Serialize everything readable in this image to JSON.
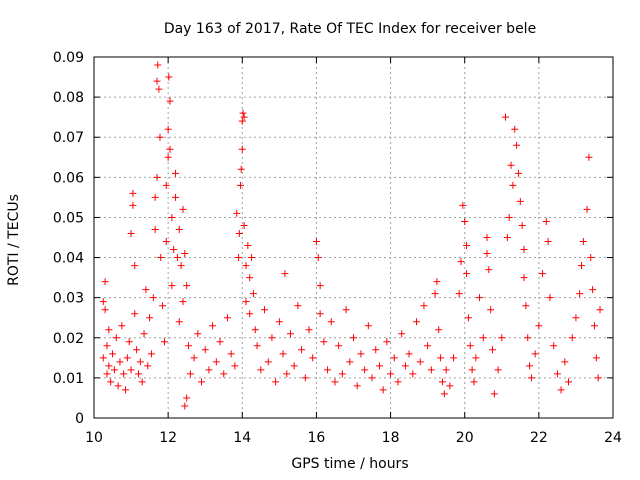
{
  "chart_data": {
    "type": "scatter",
    "title": "Day 163 of 2017, Rate Of TEC Index for receiver bele",
    "xlabel": "GPS time / hours",
    "ylabel": "ROTI / TECUs",
    "xlim": [
      10,
      24
    ],
    "ylim": [
      0,
      0.09
    ],
    "xticks": [
      10,
      12,
      14,
      16,
      18,
      20,
      22,
      24
    ],
    "xtick_labels": [
      "10",
      "12",
      "14",
      "16",
      "18",
      "20",
      "22",
      "24"
    ],
    "yticks": [
      0,
      0.01,
      0.02,
      0.03,
      0.04,
      0.05,
      0.06,
      0.07,
      0.08,
      0.09
    ],
    "ytick_labels": [
      "0",
      "0.01",
      "0.02",
      "0.03",
      "0.04",
      "0.05",
      "0.06",
      "0.07",
      "0.08",
      "0.09"
    ],
    "grid": true,
    "marker": "+",
    "series_color": "#ff0000",
    "points": [
      [
        10.25,
        0.015
      ],
      [
        10.25,
        0.029
      ],
      [
        10.3,
        0.034
      ],
      [
        10.3,
        0.027
      ],
      [
        10.35,
        0.018
      ],
      [
        10.35,
        0.011
      ],
      [
        10.4,
        0.013
      ],
      [
        10.4,
        0.022
      ],
      [
        10.45,
        0.009
      ],
      [
        10.5,
        0.016
      ],
      [
        10.55,
        0.012
      ],
      [
        10.6,
        0.02
      ],
      [
        10.65,
        0.008
      ],
      [
        10.7,
        0.014
      ],
      [
        10.75,
        0.023
      ],
      [
        10.8,
        0.011
      ],
      [
        10.85,
        0.007
      ],
      [
        10.9,
        0.015
      ],
      [
        10.95,
        0.019
      ],
      [
        11.0,
        0.012
      ],
      [
        11.0,
        0.046
      ],
      [
        11.05,
        0.053
      ],
      [
        11.05,
        0.056
      ],
      [
        11.1,
        0.038
      ],
      [
        11.1,
        0.026
      ],
      [
        11.15,
        0.017
      ],
      [
        11.2,
        0.011
      ],
      [
        11.25,
        0.014
      ],
      [
        11.3,
        0.009
      ],
      [
        11.35,
        0.021
      ],
      [
        11.4,
        0.032
      ],
      [
        11.45,
        0.013
      ],
      [
        11.5,
        0.025
      ],
      [
        11.55,
        0.016
      ],
      [
        11.6,
        0.03
      ],
      [
        11.65,
        0.047
      ],
      [
        11.65,
        0.055
      ],
      [
        11.7,
        0.06
      ],
      [
        11.7,
        0.084
      ],
      [
        11.72,
        0.088
      ],
      [
        11.75,
        0.082
      ],
      [
        11.78,
        0.07
      ],
      [
        11.8,
        0.04
      ],
      [
        11.85,
        0.028
      ],
      [
        11.9,
        0.019
      ],
      [
        11.95,
        0.044
      ],
      [
        11.95,
        0.058
      ],
      [
        12.0,
        0.065
      ],
      [
        12.0,
        0.072
      ],
      [
        12.02,
        0.085
      ],
      [
        12.05,
        0.079
      ],
      [
        12.05,
        0.067
      ],
      [
        12.1,
        0.05
      ],
      [
        12.1,
        0.033
      ],
      [
        12.15,
        0.042
      ],
      [
        12.2,
        0.055
      ],
      [
        12.2,
        0.061
      ],
      [
        12.25,
        0.04
      ],
      [
        12.3,
        0.047
      ],
      [
        12.3,
        0.024
      ],
      [
        12.35,
        0.038
      ],
      [
        12.4,
        0.029
      ],
      [
        12.4,
        0.052
      ],
      [
        12.45,
        0.041
      ],
      [
        12.5,
        0.033
      ],
      [
        12.5,
        0.005
      ],
      [
        12.45,
        0.003
      ],
      [
        12.55,
        0.018
      ],
      [
        12.6,
        0.011
      ],
      [
        12.7,
        0.015
      ],
      [
        12.8,
        0.021
      ],
      [
        12.9,
        0.009
      ],
      [
        13.0,
        0.017
      ],
      [
        13.1,
        0.012
      ],
      [
        13.2,
        0.023
      ],
      [
        13.3,
        0.014
      ],
      [
        13.4,
        0.019
      ],
      [
        13.5,
        0.011
      ],
      [
        13.6,
        0.025
      ],
      [
        13.7,
        0.016
      ],
      [
        13.8,
        0.013
      ],
      [
        13.85,
        0.051
      ],
      [
        13.9,
        0.04
      ],
      [
        13.92,
        0.046
      ],
      [
        13.95,
        0.058
      ],
      [
        13.97,
        0.062
      ],
      [
        14.0,
        0.067
      ],
      [
        14.0,
        0.074
      ],
      [
        14.02,
        0.076
      ],
      [
        14.05,
        0.075
      ],
      [
        14.05,
        0.048
      ],
      [
        14.1,
        0.038
      ],
      [
        14.1,
        0.029
      ],
      [
        14.15,
        0.043
      ],
      [
        14.2,
        0.035
      ],
      [
        14.2,
        0.026
      ],
      [
        14.25,
        0.04
      ],
      [
        14.3,
        0.031
      ],
      [
        14.35,
        0.022
      ],
      [
        14.4,
        0.018
      ],
      [
        14.5,
        0.012
      ],
      [
        14.6,
        0.027
      ],
      [
        14.7,
        0.014
      ],
      [
        14.8,
        0.02
      ],
      [
        14.9,
        0.009
      ],
      [
        15.0,
        0.024
      ],
      [
        15.1,
        0.016
      ],
      [
        15.15,
        0.036
      ],
      [
        15.2,
        0.011
      ],
      [
        15.3,
        0.021
      ],
      [
        15.4,
        0.013
      ],
      [
        15.5,
        0.028
      ],
      [
        15.6,
        0.017
      ],
      [
        15.7,
        0.01
      ],
      [
        15.8,
        0.022
      ],
      [
        15.9,
        0.015
      ],
      [
        16.0,
        0.044
      ],
      [
        16.05,
        0.04
      ],
      [
        16.1,
        0.033
      ],
      [
        16.1,
        0.026
      ],
      [
        16.2,
        0.019
      ],
      [
        16.3,
        0.012
      ],
      [
        16.4,
        0.024
      ],
      [
        16.5,
        0.009
      ],
      [
        16.6,
        0.018
      ],
      [
        16.7,
        0.011
      ],
      [
        16.8,
        0.027
      ],
      [
        16.9,
        0.014
      ],
      [
        17.0,
        0.02
      ],
      [
        17.1,
        0.008
      ],
      [
        17.2,
        0.016
      ],
      [
        17.3,
        0.012
      ],
      [
        17.4,
        0.023
      ],
      [
        17.5,
        0.01
      ],
      [
        17.6,
        0.017
      ],
      [
        17.7,
        0.013
      ],
      [
        17.8,
        0.007
      ],
      [
        17.9,
        0.019
      ],
      [
        18.0,
        0.011
      ],
      [
        18.1,
        0.015
      ],
      [
        18.2,
        0.009
      ],
      [
        18.3,
        0.021
      ],
      [
        18.4,
        0.013
      ],
      [
        18.5,
        0.016
      ],
      [
        18.6,
        0.011
      ],
      [
        18.7,
        0.024
      ],
      [
        18.8,
        0.014
      ],
      [
        18.9,
        0.028
      ],
      [
        19.0,
        0.018
      ],
      [
        19.1,
        0.012
      ],
      [
        19.2,
        0.031
      ],
      [
        19.25,
        0.034
      ],
      [
        19.3,
        0.022
      ],
      [
        19.35,
        0.015
      ],
      [
        19.4,
        0.009
      ],
      [
        19.45,
        0.006
      ],
      [
        19.5,
        0.012
      ],
      [
        19.6,
        0.008
      ],
      [
        19.7,
        0.015
      ],
      [
        19.85,
        0.031
      ],
      [
        19.9,
        0.039
      ],
      [
        19.95,
        0.053
      ],
      [
        20.0,
        0.049
      ],
      [
        20.05,
        0.043
      ],
      [
        20.05,
        0.036
      ],
      [
        20.1,
        0.025
      ],
      [
        20.15,
        0.018
      ],
      [
        20.2,
        0.012
      ],
      [
        20.25,
        0.009
      ],
      [
        20.3,
        0.015
      ],
      [
        20.4,
        0.03
      ],
      [
        20.5,
        0.02
      ],
      [
        20.6,
        0.045
      ],
      [
        20.6,
        0.041
      ],
      [
        20.65,
        0.037
      ],
      [
        20.7,
        0.027
      ],
      [
        20.75,
        0.017
      ],
      [
        20.8,
        0.006
      ],
      [
        20.9,
        0.012
      ],
      [
        21.0,
        0.02
      ],
      [
        21.1,
        0.075
      ],
      [
        21.15,
        0.045
      ],
      [
        21.2,
        0.05
      ],
      [
        21.25,
        0.063
      ],
      [
        21.3,
        0.058
      ],
      [
        21.35,
        0.072
      ],
      [
        21.4,
        0.068
      ],
      [
        21.45,
        0.061
      ],
      [
        21.5,
        0.054
      ],
      [
        21.55,
        0.048
      ],
      [
        21.6,
        0.042
      ],
      [
        21.6,
        0.035
      ],
      [
        21.65,
        0.028
      ],
      [
        21.7,
        0.02
      ],
      [
        21.75,
        0.013
      ],
      [
        21.8,
        0.01
      ],
      [
        21.9,
        0.016
      ],
      [
        22.0,
        0.023
      ],
      [
        22.1,
        0.036
      ],
      [
        22.2,
        0.049
      ],
      [
        22.25,
        0.044
      ],
      [
        22.3,
        0.03
      ],
      [
        22.4,
        0.018
      ],
      [
        22.5,
        0.011
      ],
      [
        22.6,
        0.007
      ],
      [
        22.7,
        0.014
      ],
      [
        22.8,
        0.009
      ],
      [
        22.9,
        0.02
      ],
      [
        23.0,
        0.025
      ],
      [
        23.1,
        0.031
      ],
      [
        23.15,
        0.038
      ],
      [
        23.2,
        0.044
      ],
      [
        23.3,
        0.052
      ],
      [
        23.35,
        0.065
      ],
      [
        23.4,
        0.04
      ],
      [
        23.45,
        0.032
      ],
      [
        23.5,
        0.023
      ],
      [
        23.55,
        0.015
      ],
      [
        23.6,
        0.01
      ],
      [
        23.65,
        0.027
      ]
    ]
  }
}
